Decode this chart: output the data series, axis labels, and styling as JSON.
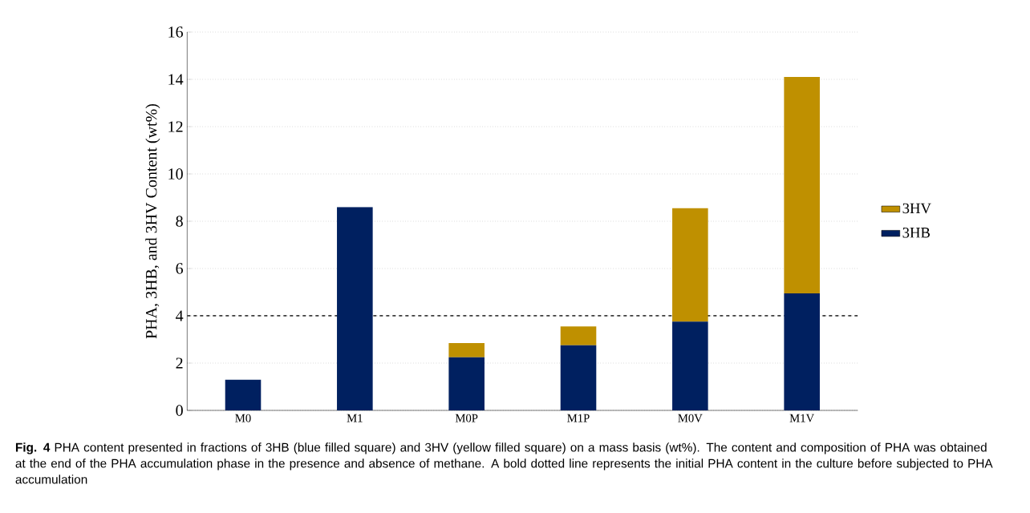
{
  "chart_data": {
    "type": "bar",
    "stacked": true,
    "ylabel": "PHA, 3HB, and 3HV Content (wt%)",
    "categories": [
      "M0",
      "M1",
      "M0P",
      "M1P",
      "M0V",
      "M1V"
    ],
    "series": [
      {
        "name": "3HB",
        "color": "#002060",
        "values": [
          1.3,
          8.6,
          2.25,
          2.75,
          3.75,
          4.95
        ]
      },
      {
        "name": "3HV",
        "color": "#bf9000",
        "values": [
          0,
          0,
          0.6,
          0.8,
          4.8,
          9.15
        ]
      }
    ],
    "ylim": [
      0,
      16
    ],
    "yticks": [
      0,
      2,
      4,
      6,
      8,
      10,
      12,
      14,
      16
    ],
    "grid": "y",
    "legend": "right",
    "ref_lines": [
      {
        "axis": "y",
        "value": 4,
        "line_style": "dashed",
        "color": "#000000"
      }
    ],
    "annotations": [
      "**Fig. 4** PHA content presented in fractions of 3HB (blue filled square) and 3HV (yellow filled square) on a mass basis (wt%). The content and composition of PHA was obtained at the end of the PHA accumulation phase in the presence and absence of methane. A bold dotted line represents the initial PHA content in the culture before subjected to PHA accumulation"
    ]
  }
}
